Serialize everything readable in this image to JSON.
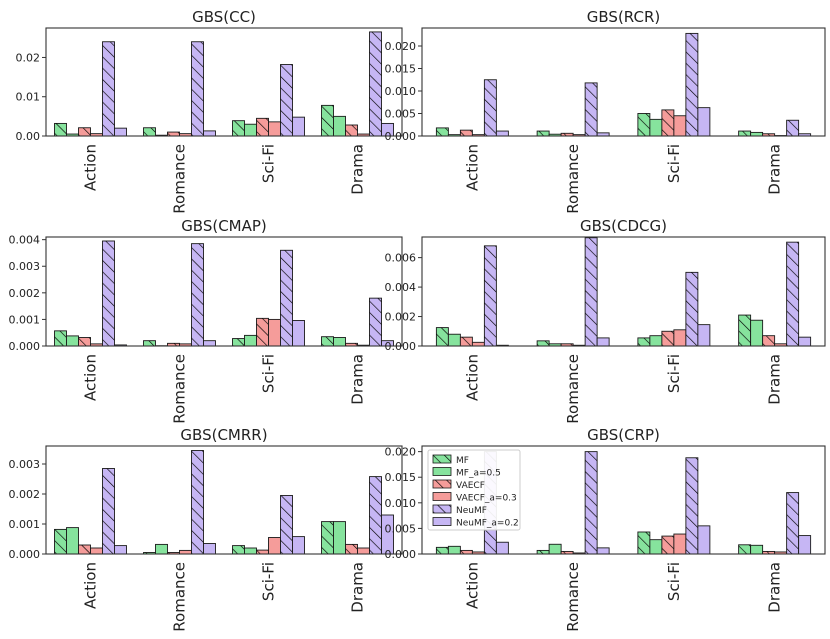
{
  "figure": {
    "legend": [
      {
        "name": "MF",
        "color": "#86e39d",
        "hatch": true
      },
      {
        "name": "MF_a=0.5",
        "color": "#86e39d",
        "hatch": false
      },
      {
        "name": "VAECF",
        "color": "#f59c9a",
        "hatch": true
      },
      {
        "name": "VAECF_a=0.3",
        "color": "#f59c9a",
        "hatch": false
      },
      {
        "name": "NeuMF",
        "color": "#c6b6f4",
        "hatch": true
      },
      {
        "name": "NeuMF_a=0.2",
        "color": "#c6b6f4",
        "hatch": false
      }
    ]
  },
  "chart_data": [
    {
      "type": "bar",
      "title": "GBS(CC)",
      "categories": [
        "Action",
        "Romance",
        "Sci-Fi",
        "Drama"
      ],
      "ylim": [
        0,
        0.0275
      ],
      "yticks": [
        0.0,
        0.01,
        0.02
      ],
      "ytick_labels": [
        "0.00",
        "0.01",
        "0.02"
      ],
      "series": [
        {
          "name": "MF",
          "values": [
            0.0032,
            0.0021,
            0.0039,
            0.0078
          ]
        },
        {
          "name": "MF_a=0.5",
          "values": [
            0.0005,
            0.0002,
            0.003,
            0.005
          ]
        },
        {
          "name": "VAECF",
          "values": [
            0.0021,
            0.001,
            0.0045,
            0.0028
          ]
        },
        {
          "name": "VAECF_a=0.3",
          "values": [
            0.0006,
            0.0006,
            0.0036,
            0.0005
          ]
        },
        {
          "name": "NeuMF",
          "values": [
            0.024,
            0.024,
            0.0182,
            0.0265
          ]
        },
        {
          "name": "NeuMF_a=0.2",
          "values": [
            0.002,
            0.0013,
            0.0048,
            0.0032
          ]
        }
      ]
    },
    {
      "type": "bar",
      "title": "GBS(RCR)",
      "categories": [
        "Action",
        "Romance",
        "Sci-Fi",
        "Drama"
      ],
      "ylim": [
        0,
        0.024
      ],
      "yticks": [
        0.0,
        0.005,
        0.01,
        0.015,
        0.02
      ],
      "ytick_labels": [
        "0.000",
        "0.005",
        "0.010",
        "0.015",
        "0.020"
      ],
      "series": [
        {
          "name": "MF",
          "values": [
            0.0018,
            0.0011,
            0.005,
            0.0011
          ]
        },
        {
          "name": "MF_a=0.5",
          "values": [
            0.0003,
            0.0004,
            0.0037,
            0.0008
          ]
        },
        {
          "name": "VAECF",
          "values": [
            0.0013,
            0.0006,
            0.0058,
            0.0005
          ]
        },
        {
          "name": "VAECF_a=0.3",
          "values": [
            0.0003,
            0.0003,
            0.0045,
            0.0001
          ]
        },
        {
          "name": "NeuMF",
          "values": [
            0.0125,
            0.0118,
            0.0228,
            0.0035
          ]
        },
        {
          "name": "NeuMF_a=0.2",
          "values": [
            0.0011,
            0.0007,
            0.0063,
            0.0005
          ]
        }
      ]
    },
    {
      "type": "bar",
      "title": "GBS(CMAP)",
      "categories": [
        "Action",
        "Romance",
        "Sci-Fi",
        "Drama"
      ],
      "ylim": [
        0,
        0.0041
      ],
      "yticks": [
        0.0,
        0.001,
        0.002,
        0.003,
        0.004
      ],
      "ytick_labels": [
        "0.000",
        "0.001",
        "0.002",
        "0.003",
        "0.004"
      ],
      "series": [
        {
          "name": "MF",
          "values": [
            0.00057,
            0.0002,
            0.00028,
            0.00035
          ]
        },
        {
          "name": "MF_a=0.5",
          "values": [
            0.00038,
            1e-05,
            0.0004,
            0.00032
          ]
        },
        {
          "name": "VAECF",
          "values": [
            0.00032,
            0.0001,
            0.00104,
            0.0001
          ]
        },
        {
          "name": "VAECF_a=0.3",
          "values": [
            8e-05,
            8e-05,
            0.001,
            3e-05
          ]
        },
        {
          "name": "NeuMF",
          "values": [
            0.00395,
            0.00385,
            0.0036,
            0.0018
          ]
        },
        {
          "name": "NeuMF_a=0.2",
          "values": [
            4e-05,
            0.0002,
            0.00096,
            0.0002
          ]
        }
      ]
    },
    {
      "type": "bar",
      "title": "GBS(CDCG)",
      "categories": [
        "Action",
        "Romance",
        "Sci-Fi",
        "Drama"
      ],
      "ylim": [
        0,
        0.0074
      ],
      "yticks": [
        0.0,
        0.002,
        0.004,
        0.006
      ],
      "ytick_labels": [
        "0.000",
        "0.002",
        "0.004",
        "0.006"
      ],
      "series": [
        {
          "name": "MF",
          "values": [
            0.00125,
            0.00035,
            0.00055,
            0.0021
          ]
        },
        {
          "name": "MF_a=0.5",
          "values": [
            0.0008,
            0.00015,
            0.0007,
            0.00175
          ]
        },
        {
          "name": "VAECF",
          "values": [
            0.0006,
            0.00015,
            0.001,
            0.0007
          ]
        },
        {
          "name": "VAECF_a=0.3",
          "values": [
            0.00025,
            5e-05,
            0.0011,
            0.00015
          ]
        },
        {
          "name": "NeuMF",
          "values": [
            0.0068,
            0.00735,
            0.005,
            0.00705
          ]
        },
        {
          "name": "NeuMF_a=0.2",
          "values": [
            5e-05,
            0.00055,
            0.00145,
            0.0006
          ]
        }
      ]
    },
    {
      "type": "bar",
      "title": "GBS(CMRR)",
      "categories": [
        "Action",
        "Romance",
        "Sci-Fi",
        "Drama"
      ],
      "ylim": [
        0,
        0.0036
      ],
      "yticks": [
        0.0,
        0.001,
        0.002,
        0.003
      ],
      "ytick_labels": [
        "0.000",
        "0.001",
        "0.002",
        "0.003"
      ],
      "series": [
        {
          "name": "MF",
          "values": [
            0.00082,
            5e-05,
            0.00028,
            0.00108
          ]
        },
        {
          "name": "MF_a=0.5",
          "values": [
            0.00088,
            0.00032,
            0.0002,
            0.00108
          ]
        },
        {
          "name": "VAECF",
          "values": [
            0.0003,
            5e-05,
            0.00013,
            0.00032
          ]
        },
        {
          "name": "VAECF_a=0.3",
          "values": [
            0.0002,
            0.00012,
            0.00055,
            0.0002
          ]
        },
        {
          "name": "NeuMF",
          "values": [
            0.00285,
            0.00345,
            0.00195,
            0.00258
          ]
        },
        {
          "name": "NeuMF_a=0.2",
          "values": [
            0.00028,
            0.00035,
            0.00058,
            0.0013
          ]
        }
      ]
    },
    {
      "type": "bar",
      "title": "GBS(CRP)",
      "categories": [
        "Action",
        "Romance",
        "Sci-Fi",
        "Drama"
      ],
      "ylim": [
        0,
        0.0211
      ],
      "yticks": [
        0.0,
        0.005,
        0.01,
        0.015,
        0.02
      ],
      "ytick_labels": [
        "0.000",
        "0.005",
        "0.010",
        "0.015",
        "0.020"
      ],
      "series": [
        {
          "name": "MF",
          "values": [
            0.0013,
            0.0007,
            0.0043,
            0.0018
          ]
        },
        {
          "name": "MF_a=0.5",
          "values": [
            0.0015,
            0.0019,
            0.0028,
            0.0017
          ]
        },
        {
          "name": "VAECF",
          "values": [
            0.0007,
            0.0005,
            0.0035,
            0.0005
          ]
        },
        {
          "name": "VAECF_a=0.3",
          "values": [
            0.0004,
            0.0002,
            0.0039,
            0.0004
          ]
        },
        {
          "name": "NeuMF",
          "values": [
            0.02,
            0.02,
            0.0188,
            0.012
          ]
        },
        {
          "name": "NeuMF_a=0.2",
          "values": [
            0.0023,
            0.0012,
            0.0055,
            0.0036
          ]
        }
      ]
    }
  ]
}
